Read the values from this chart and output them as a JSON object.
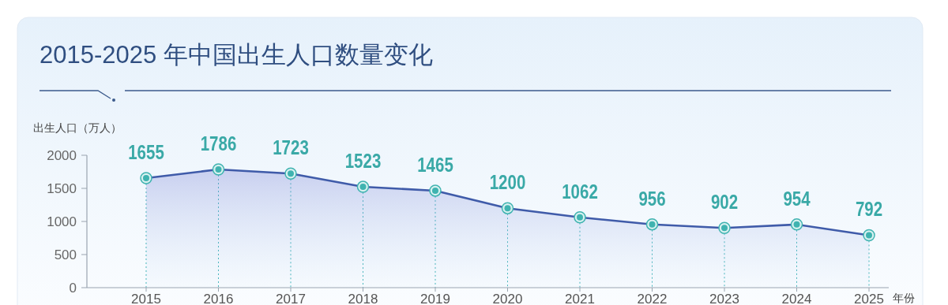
{
  "chart_data": {
    "type": "area",
    "title": "2015-2025 年中国出生人口数量变化",
    "ylabel": "出生人口（万人）",
    "xlabel": "年份",
    "categories": [
      "2015",
      "2016",
      "2017",
      "2018",
      "2019",
      "2020",
      "2021",
      "2022",
      "2023",
      "2024",
      "2025"
    ],
    "series": [
      {
        "color": "#3f5ba9",
        "values": [
          1655,
          1786,
          1723,
          1523,
          1465,
          1200,
          1062,
          956,
          902,
          954,
          792
        ]
      }
    ],
    "ylim": [
      0,
      2000
    ],
    "yticks": [
      0,
      500,
      1000,
      1500,
      2000
    ],
    "data_labels": true,
    "marker": "circle",
    "grid": "x"
  }
}
